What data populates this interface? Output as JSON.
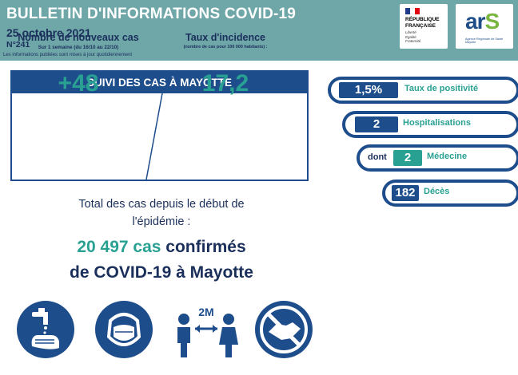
{
  "header": {
    "title": "BULLETIN D'INFORMATIONS COVID-19",
    "date": "25 octobre 2021",
    "number": "N°241",
    "note": "Les informations publiées sont mises à jour quotidiennement",
    "logo_republique": {
      "line1": "RÉPUBLIQUE",
      "line2": "FRANÇAISE",
      "motto1": "Liberté",
      "motto2": "Égalité",
      "motto3": "Fraternité"
    },
    "logo_ars": {
      "text_a": "ar",
      "text_b": "S",
      "subtitle": "Agence Régionale de Santé Mayotte"
    }
  },
  "cases": {
    "title": "SUIVI DES CAS À MAYOTTE",
    "new_cases": {
      "label": "Nombre de nouveaux cas",
      "sub": "Sur 1 semaine (du 16/10 au 22/10)",
      "value": "+48"
    },
    "incidence": {
      "label": "Taux d'incidence",
      "sub": "(nombre de cas pour 100 000 habitants) :",
      "value": "17,2"
    }
  },
  "total": {
    "line1": "Total des cas depuis le début de",
    "line2": "l'épidémie :",
    "confirmed_number": "20 497 cas",
    "confirmed_rest": " confirmés",
    "line4": "de COVID-19 à Mayotte"
  },
  "indicators": {
    "positivity": {
      "value": "1,5%",
      "label": "Taux de positivité"
    },
    "hospital": {
      "value": "2",
      "label": "Hospitalisations"
    },
    "medecine": {
      "prefix": "dont",
      "value": "2",
      "label": "Médecine"
    },
    "deces": {
      "value": "182",
      "label": "Décès"
    }
  },
  "icons": {
    "distance_label": "2M",
    "names": [
      "handwashing-icon",
      "face-mask-icon",
      "social-distance-icon",
      "no-handshake-icon"
    ]
  },
  "colors": {
    "navy": "#1e4d8c",
    "teal": "#29a192",
    "header_bg": "#6fa7a9"
  }
}
